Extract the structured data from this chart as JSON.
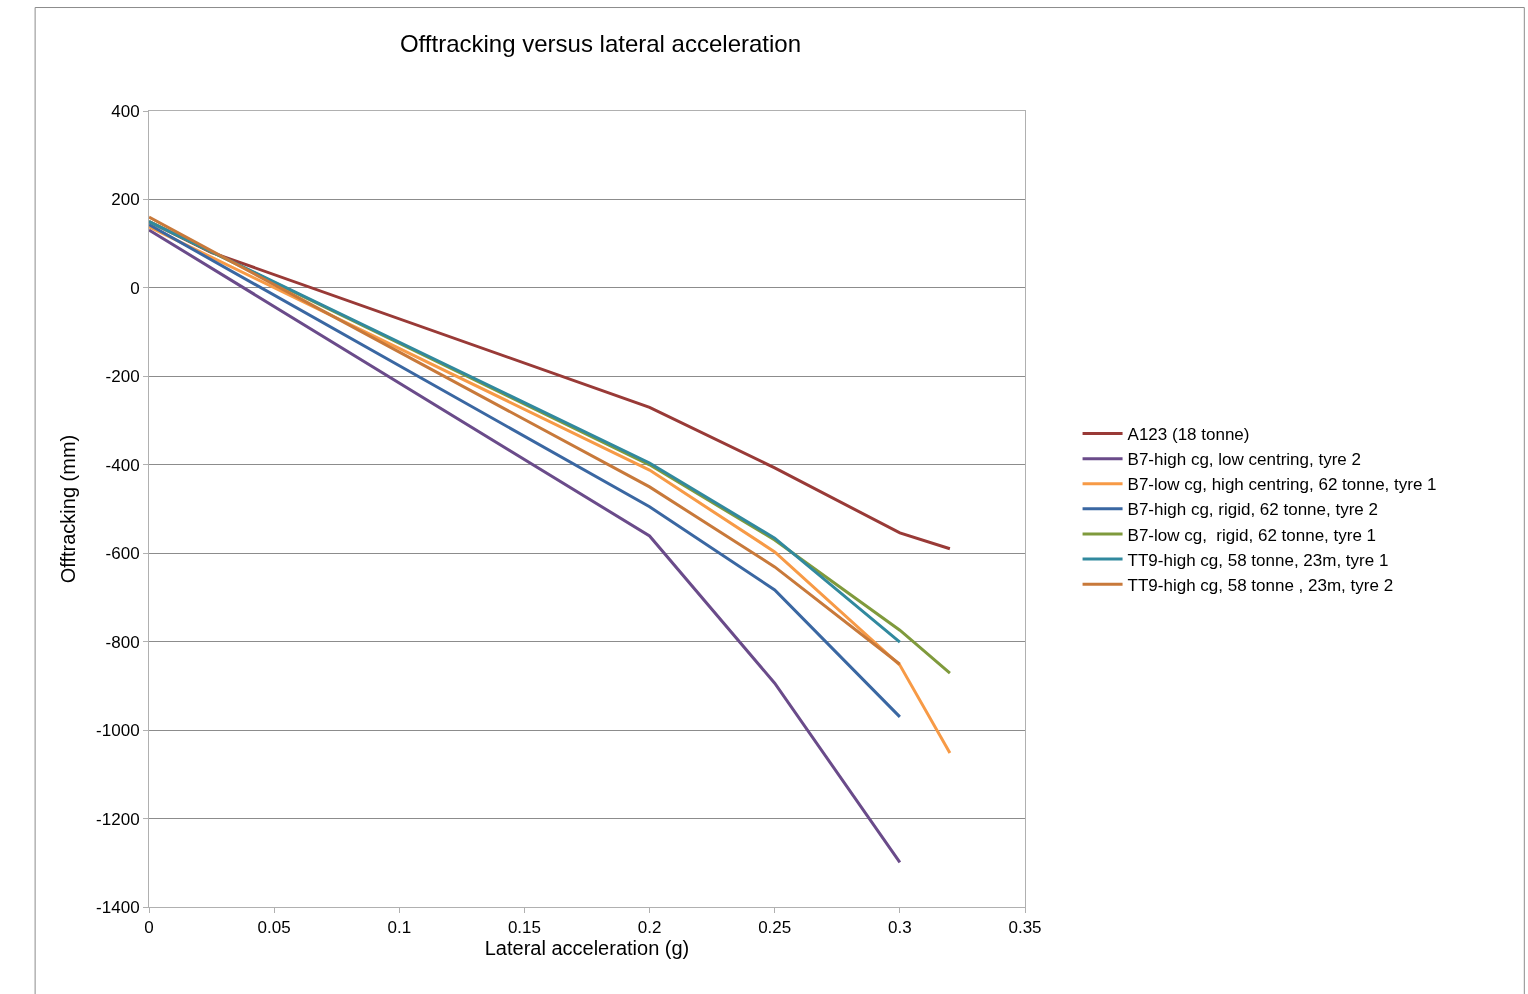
{
  "chart_data": {
    "type": "line",
    "title": "Offtracking versus lateral acceleration",
    "xlabel": "Lateral acceleration (g)",
    "ylabel": "Offtracking (mm)",
    "xlim": [
      0,
      0.35
    ],
    "xticks": [
      0,
      0.05,
      0.1,
      0.15,
      0.2,
      0.25,
      0.3,
      0.35
    ],
    "ylim": [
      -1400,
      400
    ],
    "yticks": [
      -1400,
      -1200,
      -1000,
      -800,
      -600,
      -400,
      -200,
      0,
      200,
      400
    ],
    "grid": "y",
    "legend": "right",
    "marker": "none",
    "line_style": "solid",
    "series": [
      {
        "name": "A123 (18 tonne)",
        "color": "#993a37",
        "x": [
          0,
          0.025,
          0.2,
          0.25,
          0.3,
          0.32
        ],
        "values": [
          150,
          80,
          -270,
          -407,
          -554,
          -590
        ]
      },
      {
        "name": "B7-high cg, low centring, tyre 2",
        "color": "#6a4b8a",
        "x": [
          0,
          0.2,
          0.25,
          0.3
        ],
        "values": [
          131,
          -561,
          -894,
          -1299
        ]
      },
      {
        "name": "B7-low cg, high centring, 62 tonne, tyre 1",
        "color": "#f79a46",
        "x": [
          0,
          0.2,
          0.25,
          0.3,
          0.32
        ],
        "values": [
          138,
          -412,
          -597,
          -853,
          -1052
        ]
      },
      {
        "name": "B7-high cg, rigid, 62 tonne, tyre 2",
        "color": "#3a67a2",
        "x": [
          0,
          0.2,
          0.25,
          0.3
        ],
        "values": [
          143,
          -495,
          -683,
          -970
        ]
      },
      {
        "name": "B7-low cg,  rigid, 62 tonne, tyre 1",
        "color": "#7f9a3c",
        "x": [
          0,
          0.2,
          0.25,
          0.3,
          0.32
        ],
        "values": [
          150,
          -400,
          -570,
          -774,
          -871
        ]
      },
      {
        "name": "TT9-high cg, 58 tonne, 23m, tyre 1",
        "color": "#31899e",
        "x": [
          0,
          0.2,
          0.25,
          0.3
        ],
        "values": [
          150,
          -396,
          -566,
          -801
        ]
      },
      {
        "name": "TT9-high cg, 58 tonne , 23m, tyre 2",
        "color": "#c8793a",
        "x": [
          0,
          0.2,
          0.25,
          0.3
        ],
        "values": [
          160,
          -450,
          -631,
          -851
        ]
      }
    ]
  }
}
